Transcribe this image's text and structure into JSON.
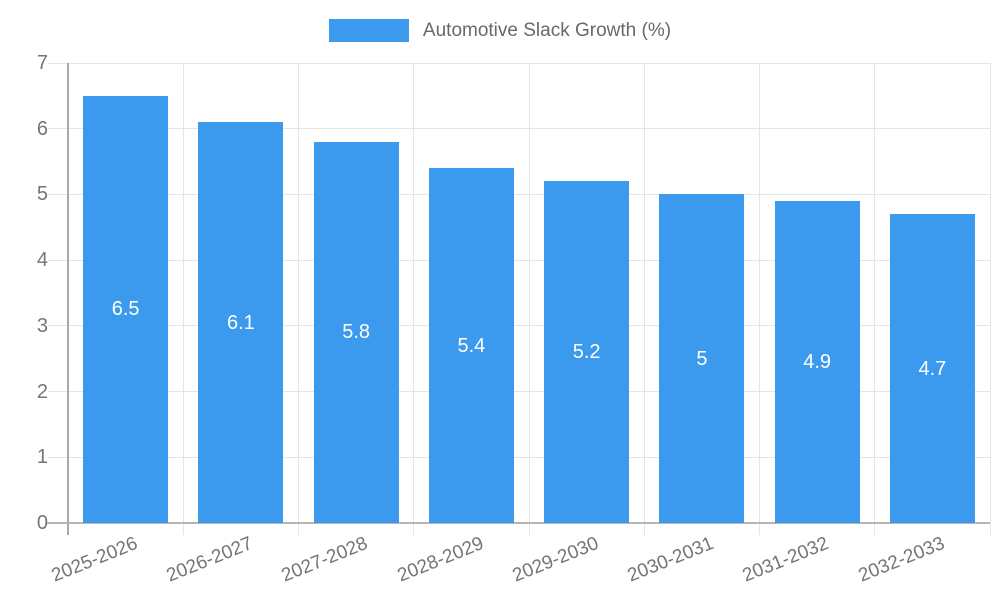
{
  "legend": {
    "label": "Automotive Slack Growth (%)"
  },
  "colors": {
    "bar": "#3B99EE",
    "grid": "#E5E5E5",
    "y_axis_line": "#A9A9A9",
    "x_axis_line": "#B5B5B5",
    "tick_label": "#757575",
    "legend_text": "#696969",
    "bar_label": "#FFFFFF",
    "background": "#FFFFFF"
  },
  "chart_data": {
    "type": "bar",
    "title": "",
    "legend_entries": [
      "Automotive Slack Growth (%)"
    ],
    "legend_position": "top-center",
    "categories": [
      "2025-2026",
      "2026-2027",
      "2027-2028",
      "2028-2029",
      "2029-2030",
      "2030-2031",
      "2031-2032",
      "2032-2033"
    ],
    "series": [
      {
        "name": "Automotive Slack Growth (%)",
        "values": [
          6.5,
          6.1,
          5.8,
          5.4,
          5.2,
          5,
          4.9,
          4.7
        ]
      }
    ],
    "bar_value_labels": [
      "6.5",
      "6.1",
      "5.8",
      "5.4",
      "5.2",
      "5",
      "4.9",
      "4.7"
    ],
    "xlabel": "",
    "ylabel": "",
    "ylim": [
      0,
      7
    ],
    "yticks": [
      0,
      1,
      2,
      3,
      4,
      5,
      6,
      7
    ],
    "grid": true,
    "x_label_rotation_deg": -22
  }
}
